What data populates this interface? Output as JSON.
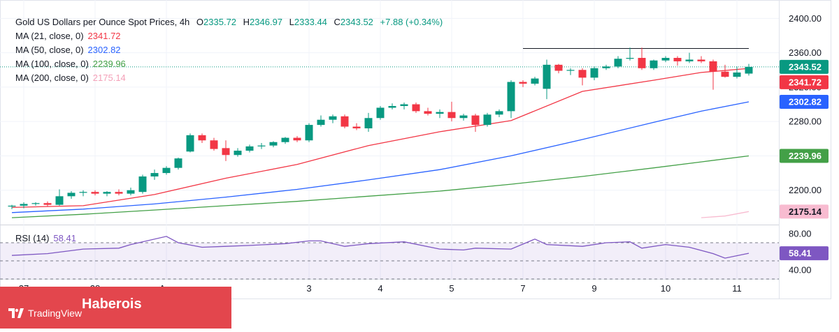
{
  "header": {
    "symbol": "Gold US Dollars per Ounce Spot Prices, 4h",
    "open_label": "O",
    "open": "2335.72",
    "high_label": "H",
    "high": "2346.97",
    "low_label": "L",
    "low": "2333.44",
    "close_label": "C",
    "close": "2343.52",
    "change": "+7.88 (+0.34%)"
  },
  "indicators": [
    {
      "label": "MA (21, close, 0)",
      "value": "2341.72",
      "color": "#f23645"
    },
    {
      "label": "MA (50, close, 0)",
      "value": "2302.82",
      "color": "#2962ff"
    },
    {
      "label": "MA (100, close, 0)",
      "value": "2239.96",
      "color": "#43a047"
    },
    {
      "label": "MA (200, close, 0)",
      "value": "2175.14",
      "color": "#f8bbd0"
    }
  ],
  "rsi": {
    "label": "RSI (14)",
    "value": "58.41",
    "color": "#7e57c2"
  },
  "watermark": {
    "brand": "Haberois",
    "logo_text": "TradingView"
  },
  "chart_data": [
    {
      "type": "candlestick",
      "title": "Gold US Dollars per Ounce Spot Prices, 4h",
      "ylim": [
        2160,
        2410
      ],
      "y_ticks": [
        2200,
        2240,
        2280,
        2320,
        2360,
        2400
      ],
      "y_tick_labels": [
        "2200.00",
        "2240.00",
        "2280.00",
        "2320.00",
        "2360.00",
        "2400.00"
      ],
      "x_tick_labels": [
        {
          "label": "27",
          "index": 1
        },
        {
          "label": "28",
          "index": 7
        },
        {
          "label": "Apr",
          "index": 13
        },
        {
          "label": "3",
          "index": 25
        },
        {
          "label": "4",
          "index": 31
        },
        {
          "label": "5",
          "index": 37
        },
        {
          "label": "7",
          "index": 43
        },
        {
          "label": "9",
          "index": 49
        },
        {
          "label": "10",
          "index": 55
        },
        {
          "label": "11",
          "index": 61
        }
      ],
      "candles": [
        {
          "o": 2181,
          "h": 2183,
          "l": 2178,
          "c": 2182
        },
        {
          "o": 2182,
          "h": 2186,
          "l": 2179,
          "c": 2184
        },
        {
          "o": 2184,
          "h": 2186,
          "l": 2182,
          "c": 2185
        },
        {
          "o": 2185,
          "h": 2187,
          "l": 2181,
          "c": 2183
        },
        {
          "o": 2183,
          "h": 2201,
          "l": 2182,
          "c": 2193
        },
        {
          "o": 2193,
          "h": 2199,
          "l": 2190,
          "c": 2197
        },
        {
          "o": 2197,
          "h": 2200,
          "l": 2193,
          "c": 2198
        },
        {
          "o": 2198,
          "h": 2200,
          "l": 2194,
          "c": 2196
        },
        {
          "o": 2196,
          "h": 2199,
          "l": 2193,
          "c": 2198
        },
        {
          "o": 2198,
          "h": 2201,
          "l": 2194,
          "c": 2196
        },
        {
          "o": 2196,
          "h": 2203,
          "l": 2194,
          "c": 2200
        },
        {
          "o": 2198,
          "h": 2218,
          "l": 2196,
          "c": 2216
        },
        {
          "o": 2216,
          "h": 2224,
          "l": 2212,
          "c": 2220
        },
        {
          "o": 2220,
          "h": 2228,
          "l": 2218,
          "c": 2226
        },
        {
          "o": 2226,
          "h": 2238,
          "l": 2224,
          "c": 2237
        },
        {
          "o": 2245,
          "h": 2266,
          "l": 2244,
          "c": 2264
        },
        {
          "o": 2264,
          "h": 2266,
          "l": 2255,
          "c": 2258
        },
        {
          "o": 2258,
          "h": 2261,
          "l": 2246,
          "c": 2248
        },
        {
          "o": 2249,
          "h": 2258,
          "l": 2234,
          "c": 2241
        },
        {
          "o": 2241,
          "h": 2249,
          "l": 2239,
          "c": 2246
        },
        {
          "o": 2246,
          "h": 2253,
          "l": 2244,
          "c": 2251
        },
        {
          "o": 2251,
          "h": 2255,
          "l": 2248,
          "c": 2252
        },
        {
          "o": 2252,
          "h": 2257,
          "l": 2250,
          "c": 2256
        },
        {
          "o": 2256,
          "h": 2262,
          "l": 2254,
          "c": 2261
        },
        {
          "o": 2261,
          "h": 2263,
          "l": 2256,
          "c": 2258
        },
        {
          "o": 2258,
          "h": 2278,
          "l": 2256,
          "c": 2276
        },
        {
          "o": 2276,
          "h": 2287,
          "l": 2274,
          "c": 2282
        },
        {
          "o": 2282,
          "h": 2288,
          "l": 2278,
          "c": 2286
        },
        {
          "o": 2286,
          "h": 2288,
          "l": 2272,
          "c": 2274
        },
        {
          "o": 2274,
          "h": 2278,
          "l": 2270,
          "c": 2272
        },
        {
          "o": 2272,
          "h": 2290,
          "l": 2268,
          "c": 2284
        },
        {
          "o": 2284,
          "h": 2298,
          "l": 2282,
          "c": 2296
        },
        {
          "o": 2296,
          "h": 2301,
          "l": 2294,
          "c": 2298
        },
        {
          "o": 2298,
          "h": 2302,
          "l": 2294,
          "c": 2300
        },
        {
          "o": 2300,
          "h": 2302,
          "l": 2290,
          "c": 2292
        },
        {
          "o": 2292,
          "h": 2296,
          "l": 2287,
          "c": 2289
        },
        {
          "o": 2289,
          "h": 2294,
          "l": 2284,
          "c": 2291
        },
        {
          "o": 2291,
          "h": 2303,
          "l": 2280,
          "c": 2284
        },
        {
          "o": 2284,
          "h": 2289,
          "l": 2281,
          "c": 2287
        },
        {
          "o": 2287,
          "h": 2289,
          "l": 2268,
          "c": 2276
        },
        {
          "o": 2276,
          "h": 2290,
          "l": 2274,
          "c": 2288
        },
        {
          "o": 2288,
          "h": 2294,
          "l": 2285,
          "c": 2292
        },
        {
          "o": 2292,
          "h": 2328,
          "l": 2284,
          "c": 2326
        },
        {
          "o": 2326,
          "h": 2328,
          "l": 2320,
          "c": 2324
        },
        {
          "o": 2324,
          "h": 2332,
          "l": 2322,
          "c": 2330
        },
        {
          "o": 2318,
          "h": 2352,
          "l": 2306,
          "c": 2346
        },
        {
          "o": 2346,
          "h": 2347,
          "l": 2336,
          "c": 2339
        },
        {
          "o": 2339,
          "h": 2342,
          "l": 2334,
          "c": 2340
        },
        {
          "o": 2340,
          "h": 2342,
          "l": 2322,
          "c": 2331
        },
        {
          "o": 2331,
          "h": 2344,
          "l": 2328,
          "c": 2342
        },
        {
          "o": 2342,
          "h": 2346,
          "l": 2340,
          "c": 2344
        },
        {
          "o": 2344,
          "h": 2356,
          "l": 2342,
          "c": 2353
        },
        {
          "o": 2353,
          "h": 2366,
          "l": 2351,
          "c": 2354
        },
        {
          "o": 2354,
          "h": 2366,
          "l": 2340,
          "c": 2342
        },
        {
          "o": 2342,
          "h": 2352,
          "l": 2340,
          "c": 2351
        },
        {
          "o": 2351,
          "h": 2356,
          "l": 2349,
          "c": 2354
        },
        {
          "o": 2354,
          "h": 2356,
          "l": 2345,
          "c": 2350
        },
        {
          "o": 2350,
          "h": 2360,
          "l": 2348,
          "c": 2352
        },
        {
          "o": 2352,
          "h": 2356,
          "l": 2348,
          "c": 2350
        },
        {
          "o": 2350,
          "h": 2352,
          "l": 2317,
          "c": 2338
        },
        {
          "o": 2338,
          "h": 2346,
          "l": 2331,
          "c": 2332
        },
        {
          "o": 2332,
          "h": 2344,
          "l": 2330,
          "c": 2337
        },
        {
          "o": 2335.72,
          "h": 2346.97,
          "l": 2333.44,
          "c": 2343.52
        }
      ],
      "resistance": {
        "value": 2365,
        "from_index": 43,
        "to_index": 62
      },
      "last_price": 2343.52,
      "moving_averages": [
        {
          "name": "MA (21, close, 0)",
          "color": "#f23645",
          "x": [
            0,
            6,
            12,
            18,
            24,
            30,
            36,
            42,
            48,
            54,
            58,
            62
          ],
          "y": [
            2180,
            2182,
            2195,
            2214,
            2230,
            2252,
            2268,
            2281,
            2315,
            2328,
            2337,
            2341.72
          ]
        },
        {
          "name": "MA (50, close, 0)",
          "color": "#2962ff",
          "x": [
            0,
            6,
            12,
            18,
            24,
            30,
            36,
            42,
            48,
            54,
            58,
            62
          ],
          "y": [
            2174,
            2178,
            2184,
            2192,
            2201,
            2212,
            2224,
            2240,
            2259,
            2279,
            2292,
            2302.82
          ]
        },
        {
          "name": "MA (100, close, 0)",
          "color": "#43a047",
          "x": [
            0,
            6,
            12,
            18,
            24,
            30,
            36,
            42,
            48,
            54,
            58,
            62
          ],
          "y": [
            2168,
            2172,
            2177,
            2182,
            2187,
            2193,
            2199,
            2207,
            2216,
            2226,
            2233,
            2239.96
          ]
        },
        {
          "name": "MA (200, close, 0)",
          "color": "#f8bbd0",
          "x": [
            58,
            60,
            62
          ],
          "y": [
            2168,
            2170,
            2175.14
          ]
        }
      ],
      "value_tags": [
        {
          "value": 2343.52,
          "label": "2343.52",
          "bg": "#089981",
          "fg": "#ffffff"
        },
        {
          "value": 2341.72,
          "label": "2341.72",
          "bg": "#f23645",
          "fg": "#ffffff"
        },
        {
          "value": 2302.82,
          "label": "2302.82",
          "bg": "#2962ff",
          "fg": "#ffffff"
        },
        {
          "value": 2239.96,
          "label": "2239.96",
          "bg": "#43a047",
          "fg": "#ffffff"
        },
        {
          "value": 2175.14,
          "label": "2175.14",
          "bg": "#f8bbd0",
          "fg": "#131722"
        }
      ]
    },
    {
      "type": "line",
      "title": "RSI (14)",
      "ylim": [
        30,
        90
      ],
      "y_ticks": [
        40,
        80
      ],
      "y_tick_labels": [
        "40.00",
        "80.00"
      ],
      "band": [
        30,
        70
      ],
      "midline": 50,
      "series": [
        {
          "name": "RSI (14)",
          "color": "#7e57c2",
          "x": [
            0,
            3,
            6,
            9,
            10,
            13,
            14,
            16,
            18,
            20,
            23,
            25,
            26,
            28,
            30,
            33,
            36,
            38,
            39,
            42,
            44,
            45,
            48,
            50,
            52,
            53,
            55,
            57,
            59,
            60,
            62
          ],
          "y": [
            56,
            58,
            63,
            64,
            68,
            77,
            70,
            65,
            66,
            67,
            69,
            72,
            72,
            66,
            69,
            71,
            63,
            62,
            64,
            63,
            74,
            68,
            66,
            70,
            71,
            64,
            68,
            65,
            58,
            53,
            58.41
          ]
        }
      ],
      "value_tag": {
        "value": 58.41,
        "label": "58.41",
        "bg": "#7e57c2",
        "fg": "#ffffff"
      }
    }
  ]
}
